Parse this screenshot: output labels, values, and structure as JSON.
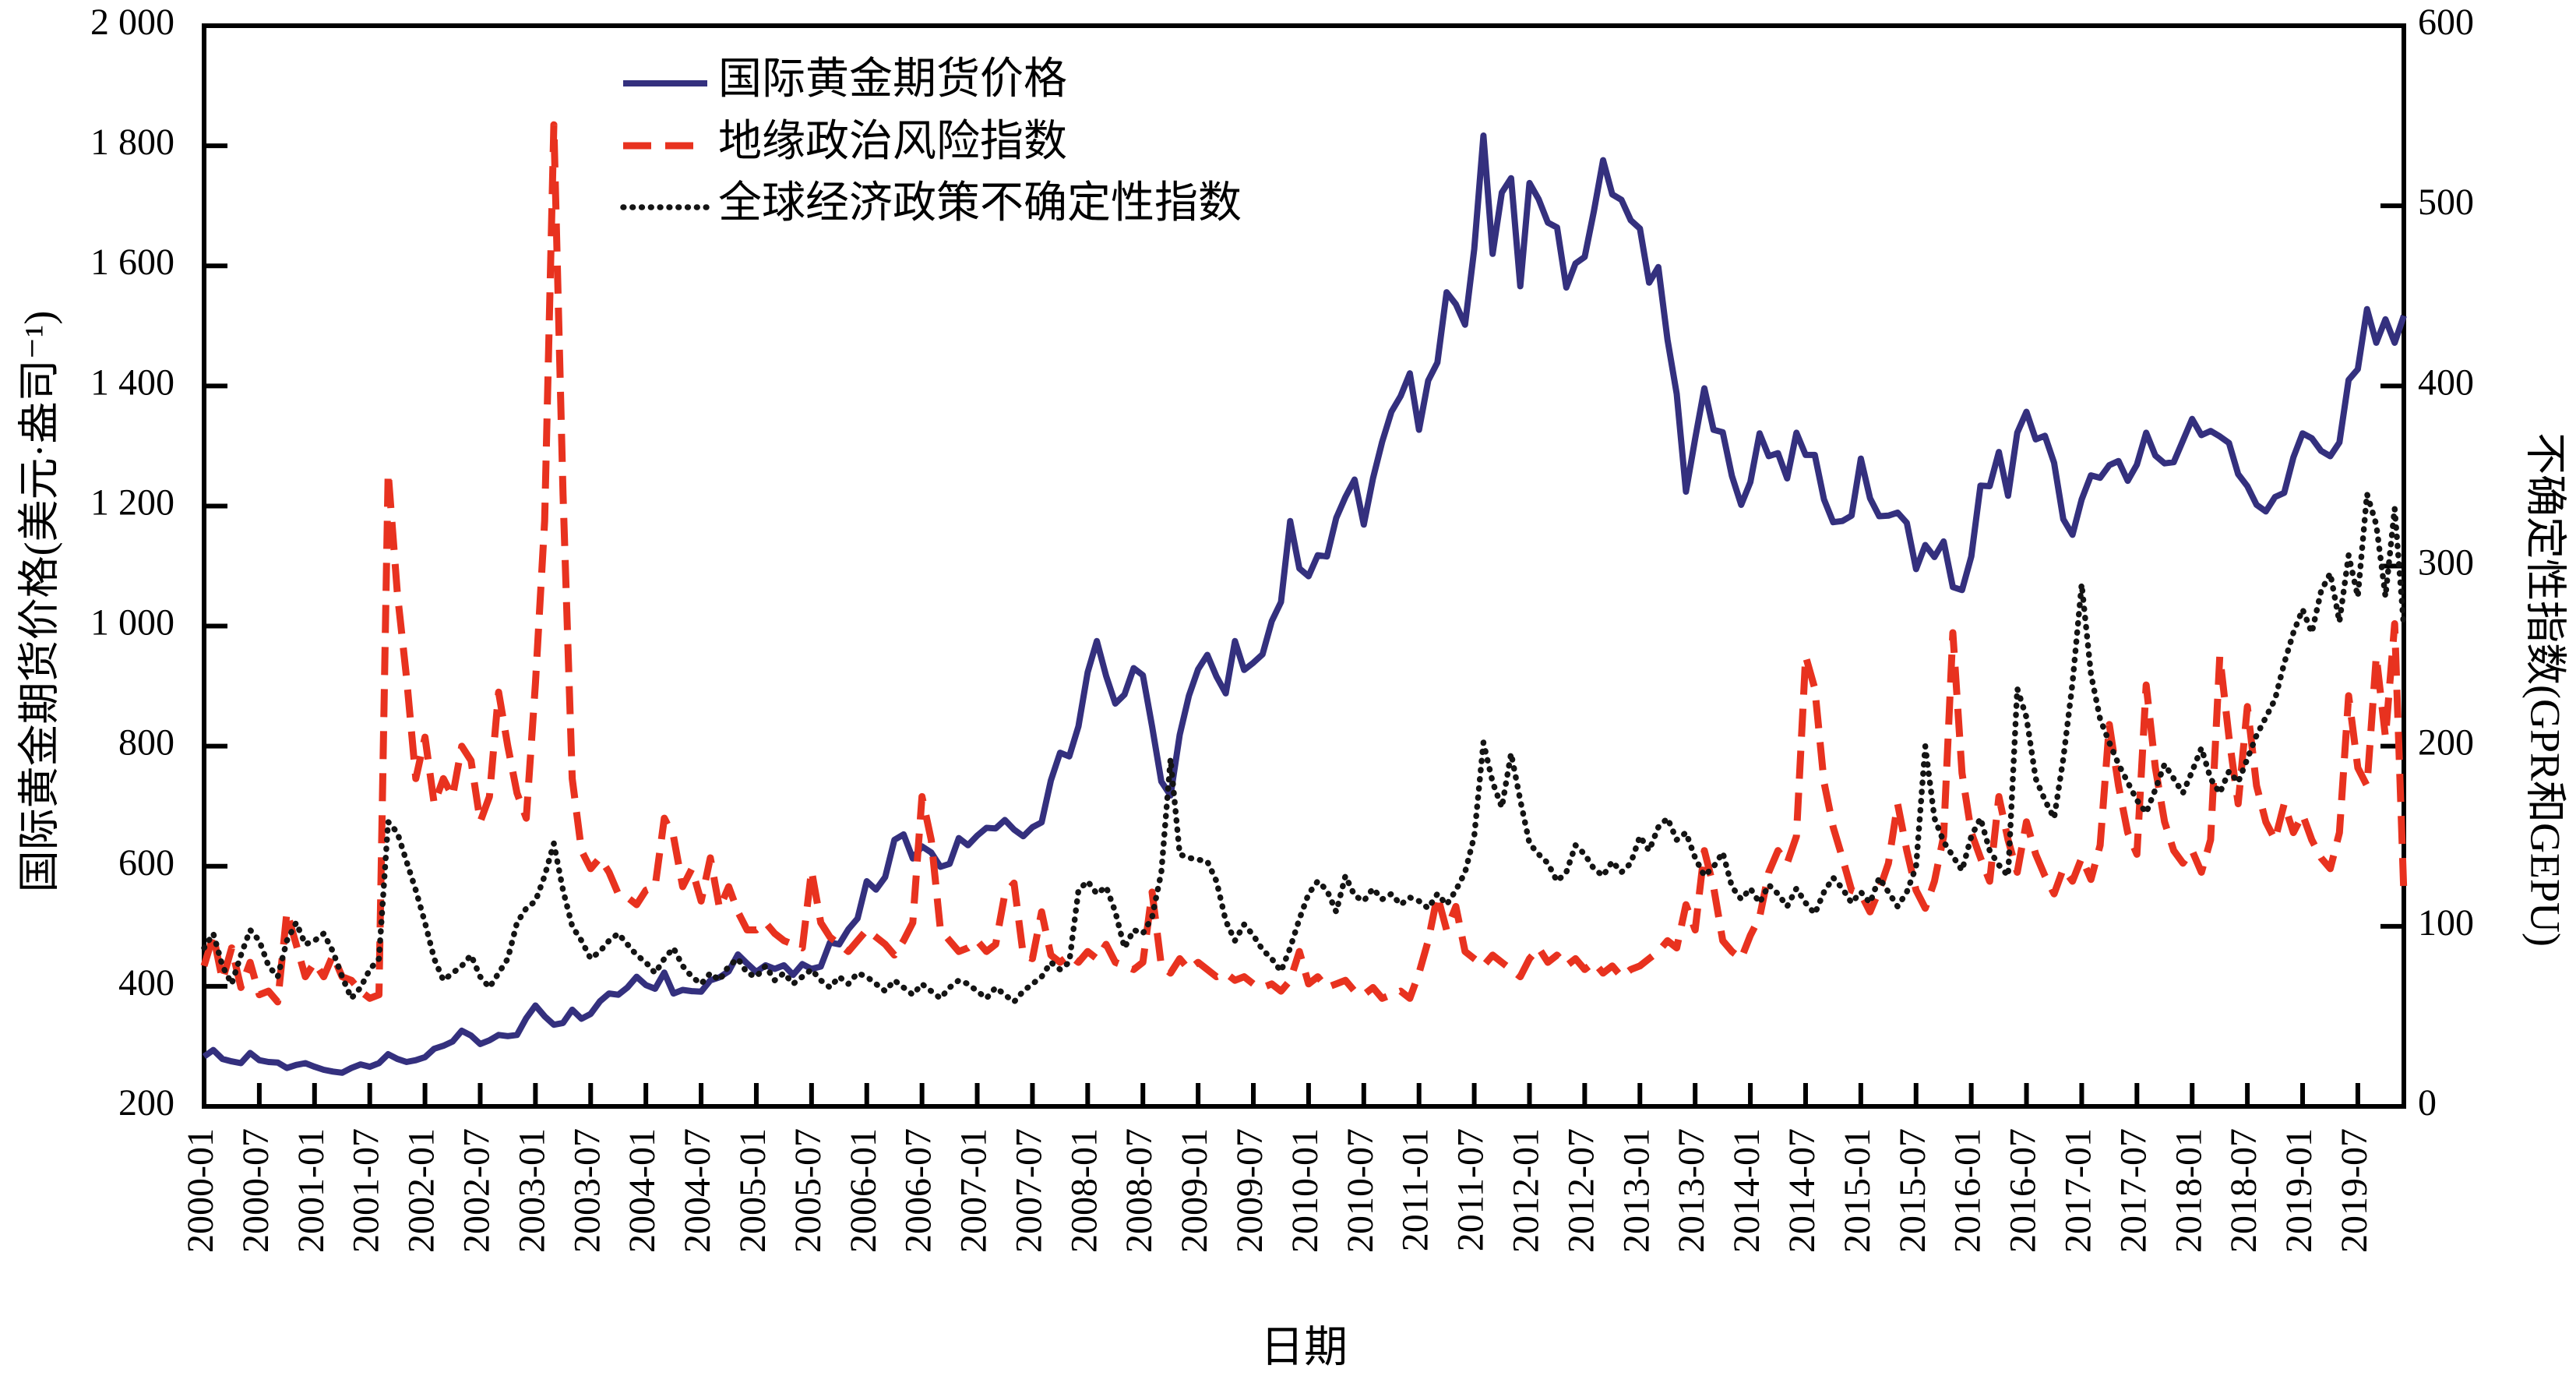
{
  "chart_data": {
    "type": "line",
    "title": "",
    "xlabel": "日期",
    "ylabel_left": "国际黄金期货价格(美元·盎司⁻¹)",
    "ylabel_right": "不确定性指数(GPR和GEPU)",
    "background_color": "#ffffff",
    "axis_color": "#000000",
    "grid": false,
    "legend_position": "upper-left-inside",
    "x_start": "2000-01",
    "x_end": "2019-12",
    "x_interval_months": 1,
    "x_tick_interval_months": 6,
    "x_tick_labels": [
      "2000-01",
      "2000-07",
      "2001-01",
      "2001-07",
      "2002-01",
      "2002-07",
      "2003-01",
      "2003-07",
      "2004-01",
      "2004-07",
      "2005-01",
      "2005-07",
      "2006-01",
      "2006-07",
      "2007-01",
      "2007-07",
      "2008-01",
      "2008-07",
      "2009-01",
      "2009-07",
      "2010-01",
      "2010-07",
      "2011-01",
      "2011-07",
      "2012-01",
      "2012-07",
      "2013-01",
      "2013-07",
      "2014-01",
      "2014-07",
      "2015-01",
      "2015-07",
      "2016-01",
      "2016-07",
      "2017-01",
      "2017-07",
      "2018-01",
      "2018-07",
      "2019-01",
      "2019-07"
    ],
    "ylim_left": [
      200,
      2000
    ],
    "yticks_left_values": [
      200,
      400,
      600,
      800,
      1000,
      1200,
      1400,
      1600,
      1800,
      2000
    ],
    "yticks_left_labels": [
      "200",
      "400",
      "600",
      "800",
      "1 000",
      "1 200",
      "1 400",
      "1 600",
      "1 800",
      "2 000"
    ],
    "ylim_right": [
      0,
      600
    ],
    "yticks_right_values": [
      0,
      100,
      200,
      300,
      400,
      500,
      600
    ],
    "yticks_right_labels": [
      "0",
      "100",
      "200",
      "300",
      "400",
      "500",
      "600"
    ],
    "series": [
      {
        "name": "国际黄金期货价格",
        "axis": "left",
        "style": "solid",
        "color": "#34307e",
        "values": [
          283,
          294,
          279,
          275,
          272,
          289,
          277,
          274,
          273,
          264,
          269,
          272,
          266,
          261,
          258,
          256,
          264,
          270,
          266,
          272,
          287,
          279,
          274,
          277,
          282,
          296,
          301,
          308,
          326,
          318,
          304,
          310,
          319,
          317,
          319,
          347,
          368,
          350,
          336,
          339,
          361,
          346,
          354,
          375,
          388,
          386,
          398,
          416,
          402,
          396,
          423,
          388,
          394,
          392,
          391,
          410,
          415,
          425,
          453,
          438,
          424,
          435,
          429,
          435,
          419,
          437,
          429,
          433,
          473,
          470,
          495,
          513,
          575,
          561,
          582,
          644,
          653,
          613,
          633,
          623,
          599,
          604,
          647,
          635,
          651,
          664,
          663,
          677,
          661,
          650,
          665,
          673,
          743,
          789,
          783,
          833,
          923,
          975,
          917,
          871,
          886,
          930,
          918,
          833,
          741,
          718,
          819,
          884,
          928,
          952,
          916,
          888,
          975,
          927,
          939,
          953,
          1008,
          1040,
          1175,
          1096,
          1083,
          1118,
          1116,
          1180,
          1215,
          1244,
          1169,
          1246,
          1307,
          1357,
          1383,
          1421,
          1327,
          1409,
          1439,
          1556,
          1536,
          1502,
          1628,
          1817,
          1620,
          1722,
          1746,
          1566,
          1738,
          1711,
          1672,
          1664,
          1564,
          1604,
          1615,
          1691,
          1776,
          1719,
          1710,
          1676,
          1662,
          1572,
          1598,
          1477,
          1387,
          1224,
          1312,
          1396,
          1327,
          1323,
          1250,
          1202,
          1240,
          1321,
          1283,
          1288,
          1246,
          1322,
          1285,
          1285,
          1211,
          1173,
          1175,
          1184,
          1279,
          1213,
          1183,
          1184,
          1189,
          1172,
          1095,
          1135,
          1115,
          1141,
          1065,
          1060,
          1116,
          1234,
          1233,
          1290,
          1217,
          1322,
          1357,
          1311,
          1317,
          1272,
          1178,
          1152,
          1211,
          1251,
          1247,
          1268,
          1275,
          1242,
          1269,
          1322,
          1284,
          1271,
          1273,
          1309,
          1345,
          1318,
          1325,
          1316,
          1305,
          1253,
          1233,
          1202,
          1191,
          1215,
          1222,
          1281,
          1321,
          1313,
          1292,
          1283,
          1306,
          1410,
          1428,
          1528,
          1472,
          1511,
          1472,
          1517
        ]
      },
      {
        "name": "地缘政治风险指数",
        "axis": "right",
        "style": "dashed",
        "color": "#e8321f",
        "values": [
          78,
          95,
          70,
          88,
          66,
          80,
          62,
          64,
          58,
          108,
          90,
          72,
          80,
          72,
          84,
          72,
          70,
          64,
          60,
          62,
          352,
          285,
          238,
          182,
          205,
          168,
          182,
          172,
          200,
          192,
          158,
          172,
          230,
          200,
          174,
          160,
          235,
          325,
          545,
          340,
          182,
          142,
          132,
          138,
          130,
          118,
          116,
          112,
          120,
          122,
          160,
          150,
          122,
          132,
          114,
          138,
          110,
          122,
          108,
          98,
          98,
          102,
          96,
          92,
          90,
          88,
          131,
          102,
          94,
          90,
          86,
          92,
          98,
          94,
          90,
          84,
          92,
          102,
          172,
          148,
          98,
          92,
          86,
          88,
          92,
          86,
          90,
          118,
          124,
          84,
          82,
          108,
          84,
          80,
          84,
          80,
          86,
          82,
          90,
          80,
          78,
          76,
          80,
          119,
          78,
          74,
          82,
          76,
          80,
          76,
          72,
          74,
          70,
          72,
          68,
          66,
          68,
          64,
          70,
          86,
          68,
          72,
          66,
          68,
          70,
          64,
          62,
          66,
          60,
          62,
          64,
          60,
          74,
          92,
          117,
          98,
          111,
          86,
          82,
          78,
          84,
          80,
          76,
          72,
          82,
          88,
          80,
          84,
          78,
          82,
          76,
          80,
          74,
          78,
          72,
          76,
          78,
          82,
          86,
          92,
          88,
          112,
          98,
          142,
          122,
          92,
          86,
          82,
          95,
          105,
          130,
          142,
          135,
          150,
          250,
          232,
          180,
          155,
          138,
          120,
          118,
          108,
          120,
          135,
          168,
          142,
          120,
          110,
          125,
          150,
          263,
          185,
          152,
          138,
          125,
          172,
          148,
          130,
          158,
          140,
          128,
          118,
          132,
          125,
          138,
          126,
          145,
          212,
          178,
          152,
          140,
          234,
          188,
          158,
          142,
          135,
          142,
          130,
          148,
          250,
          205,
          168,
          222,
          178,
          158,
          148,
          168,
          152,
          162,
          148,
          138,
          132,
          152,
          228,
          188,
          178,
          250,
          205,
          268,
          118
        ]
      },
      {
        "name": "全球经济政策不确定性指数",
        "axis": "right",
        "style": "dotted",
        "color": "#141414",
        "values": [
          88,
          96,
          78,
          68,
          84,
          98,
          92,
          78,
          72,
          92,
          102,
          90,
          92,
          96,
          86,
          72,
          60,
          66,
          76,
          82,
          158,
          152,
          136,
          120,
          102,
          82,
          70,
          74,
          78,
          84,
          72,
          66,
          74,
          82,
          102,
          110,
          114,
          128,
          146,
          120,
          100,
          92,
          82,
          86,
          92,
          96,
          90,
          84,
          80,
          74,
          82,
          88,
          78,
          72,
          68,
          74,
          70,
          78,
          82,
          74,
          72,
          78,
          70,
          74,
          68,
          72,
          76,
          70,
          66,
          72,
          68,
          74,
          72,
          68,
          64,
          70,
          66,
          62,
          68,
          64,
          60,
          66,
          70,
          68,
          64,
          60,
          66,
          62,
          58,
          64,
          68,
          72,
          80,
          76,
          80,
          120,
          125,
          118,
          122,
          108,
          88,
          98,
          96,
          105,
          130,
          193,
          140,
          138,
          137,
          136,
          125,
          103,
          92,
          101,
          95,
          87,
          82,
          75,
          88,
          104,
          118,
          125,
          120,
          108,
          128,
          117,
          114,
          121,
          115,
          118,
          112,
          116,
          114,
          110,
          118,
          112,
          120,
          130,
          150,
          202,
          180,
          166,
          196,
          170,
          146,
          140,
          135,
          125,
          130,
          145,
          140,
          132,
          128,
          136,
          130,
          135,
          150,
          142,
          155,
          160,
          148,
          152,
          138,
          128,
          133,
          141,
          122,
          115,
          121,
          113,
          123,
          118,
          111,
          121,
          113,
          107,
          119,
          127,
          121,
          113,
          119,
          113,
          127,
          119,
          111,
          119,
          133,
          200,
          160,
          147,
          139,
          131,
          150,
          160,
          142,
          134,
          128,
          232,
          216,
          182,
          170,
          160,
          193,
          235,
          290,
          240,
          215,
          202,
          190,
          180,
          170,
          163,
          176,
          190,
          182,
          174,
          186,
          199,
          182,
          174,
          186,
          180,
          193,
          206,
          216,
          226,
          246,
          263,
          276,
          263,
          286,
          296,
          269,
          306,
          283,
          340,
          323,
          283,
          332,
          266
        ]
      }
    ]
  }
}
